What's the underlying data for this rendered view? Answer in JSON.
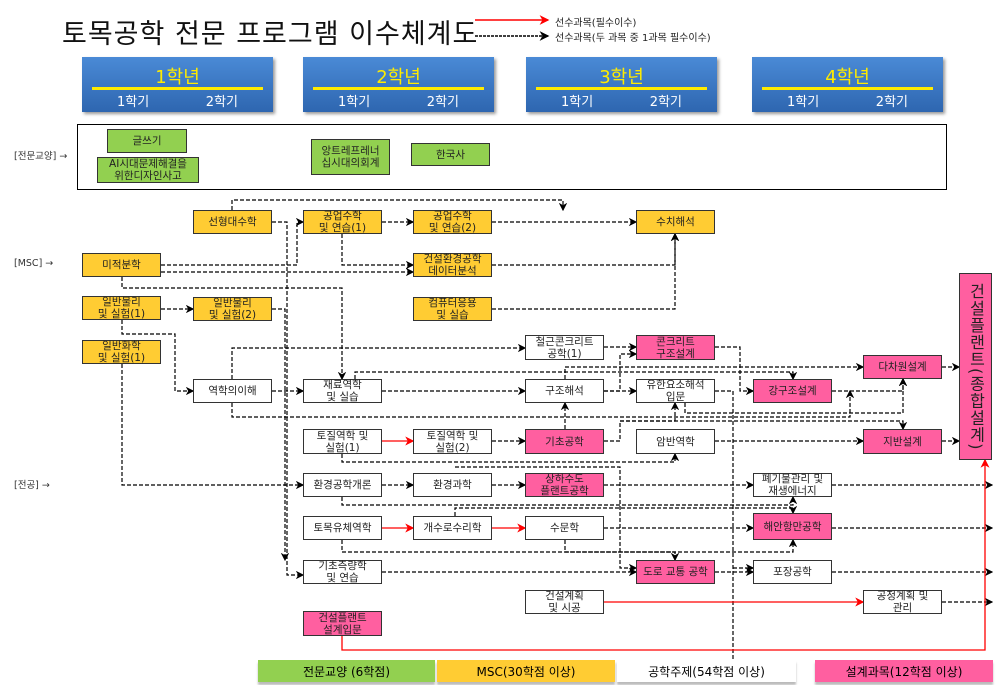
{
  "title": "토목공학 전문 프로그램 이수체계도",
  "legend": {
    "required": "선수과목(필수이수)",
    "either": "선수과목(두 과목 중 1과목 필수이수)",
    "colors": {
      "required": "#ff0000",
      "either": "#000000"
    }
  },
  "years": [
    {
      "label": "1학년",
      "s1": "1학기",
      "s2": "2학기"
    },
    {
      "label": "2학년",
      "s1": "1학기",
      "s2": "2학기"
    },
    {
      "label": "3학년",
      "s1": "1학기",
      "s2": "2학기"
    },
    {
      "label": "4학년",
      "s1": "1학기",
      "s2": "2학기"
    }
  ],
  "row_labels": {
    "general": "[전문교양]  →",
    "msc": "[MSC]  →",
    "major": "[전공]  →"
  },
  "courses": {
    "c1": "글쓰기",
    "c2": "AI시대문제해결을\n위한디자인사고",
    "c3": "앙트레프레너\n십시대의회계",
    "c4": "한국사",
    "c5": "선형대수학",
    "c6": "공업수학\n및 연습(1)",
    "c7": "공업수학\n및 연습(2)",
    "c8": "수치해석",
    "c9": "미적분학",
    "c10": "건설환경공학\n데이터분석",
    "c11": "일반물리\n및 실험(1)",
    "c12": "일반물리\n및 실험(2)",
    "c13": "컴퓨터응용\n및 실습",
    "c14": "일반화학\n및 실험(1)",
    "c15": "철근콘크리트\n공학(1)",
    "c16": "콘크리트\n구조설계",
    "c17": "역학의이해",
    "c18": "재료역학\n및 실습",
    "c19": "구조해석",
    "c20": "유한요소해석\n입문",
    "c21": "강구조설계",
    "c22": "다차원설계",
    "c23": "건설플랜트(종합설계)",
    "c24": "토질역학 및\n실험(1)",
    "c25": "토질역학 및\n실험(2)",
    "c26": "기초공학",
    "c27": "암반역학",
    "c28": "지반설계",
    "c29": "환경공학개론",
    "c30": "환경과학",
    "c31": "상하수도\n플랜트공학",
    "c32": "폐기물관리 및\n재생에너지",
    "c33": "토목유체역학",
    "c34": "개수로수리학",
    "c35": "수문학",
    "c36": "해안항만공학",
    "c37": "기초측량학\n및 연습",
    "c38": "도로 교통 공학",
    "c39": "포장공학",
    "c40": "건설계획\n및 시공",
    "c41": "공정계획 및\n관리",
    "c42": "건설플랜트\n설계입문"
  },
  "bottom_legend": [
    "전문교양 (6학점)",
    "MSC(30학점 이상)",
    "공학주제(54학점 이상)",
    "설계과목(12학점 이상)"
  ],
  "category_colors": {
    "general": "#92d050",
    "msc": "#ffcc33",
    "engineering": "#ffffff",
    "design": "#ff5fa0"
  }
}
